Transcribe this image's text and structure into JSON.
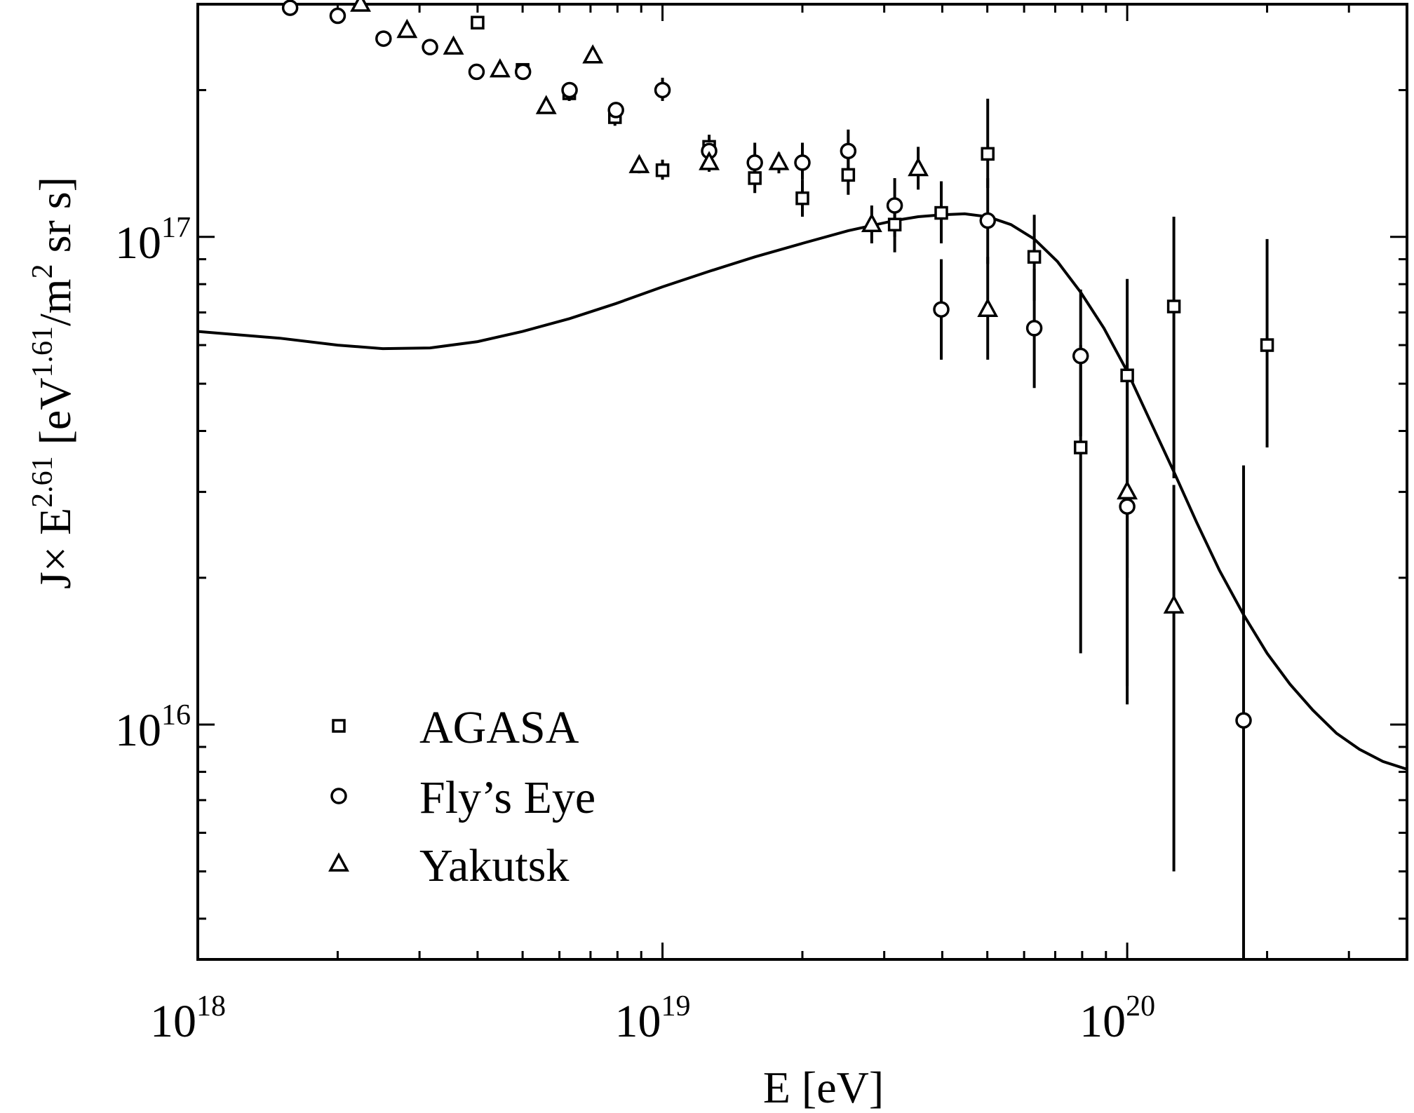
{
  "chart_data": {
    "type": "scatter",
    "x_scale": "log",
    "y_scale": "log",
    "xlim": [
      1e+18,
      4e+20
    ],
    "ylim": [
      3300000000000000.0,
      3e+17
    ],
    "xlabel": "E  [eV]",
    "ylabel": {
      "prefix": "J",
      "times": "×",
      "e": " E",
      "exp1": "2.61",
      "unit_open": "  [eV",
      "exp2": "1.61",
      "unit_mid": "/m",
      "exp3": "2",
      "unit_close": " sr s]"
    },
    "x_ticks": [
      {
        "base": "10",
        "exp": "18",
        "value": 1e+18
      },
      {
        "base": "10",
        "exp": "19",
        "value": 1e+19
      },
      {
        "base": "10",
        "exp": "20",
        "value": 1e+20
      }
    ],
    "y_ticks": [
      {
        "base": "10",
        "exp": "16",
        "value": 1e+16
      },
      {
        "base": "10",
        "exp": "17",
        "value": 1e+17
      }
    ],
    "grid": false,
    "legend_position": "bottom-left",
    "series": [
      {
        "name": "AGASA",
        "marker": "square",
        "points": [
          {
            "x": 4e+18,
            "y": 2.75e+17,
            "lo": 2.68e+17,
            "hi": 2.82e+17
          },
          {
            "x": 5e+18,
            "y": 2.2e+17,
            "lo": 2.14e+17,
            "hi": 2.26e+17
          },
          {
            "x": 6.3e+18,
            "y": 1.97e+17,
            "lo": 1.9e+17,
            "hi": 2.05e+17
          },
          {
            "x": 7.9e+18,
            "y": 1.76e+17,
            "lo": 1.69e+17,
            "hi": 1.83e+17
          },
          {
            "x": 1e+19,
            "y": 1.37e+17,
            "lo": 1.31e+17,
            "hi": 1.44e+17
          },
          {
            "x": 1.26e+19,
            "y": 1.53e+17,
            "lo": 1.45e+17,
            "hi": 1.62e+17
          },
          {
            "x": 1.58e+19,
            "y": 1.32e+17,
            "lo": 1.23e+17,
            "hi": 1.42e+17
          },
          {
            "x": 2e+19,
            "y": 1.2e+17,
            "lo": 1.1e+17,
            "hi": 1.31e+17
          },
          {
            "x": 2.51e+19,
            "y": 1.34e+17,
            "lo": 1.22e+17,
            "hi": 1.48e+17
          },
          {
            "x": 3.16e+19,
            "y": 1.06e+17,
            "lo": 9.3e+16,
            "hi": 1.2e+17
          },
          {
            "x": 3.98e+19,
            "y": 1.12e+17,
            "lo": 9.7e+16,
            "hi": 1.3e+17
          },
          {
            "x": 5.01e+19,
            "y": 1.48e+17,
            "lo": 1.26e+17,
            "hi": 1.92e+17
          },
          {
            "x": 6.31e+19,
            "y": 9.1e+16,
            "lo": 7.4e+16,
            "hi": 1.11e+17
          },
          {
            "x": 7.94e+19,
            "y": 3.7e+16,
            "lo": 1.4e+16,
            "hi": 6e+16
          },
          {
            "x": 1e+20,
            "y": 5.2e+16,
            "lo": 2e+16,
            "hi": 8.2e+16
          },
          {
            "x": 1.26e+20,
            "y": 7.2e+16,
            "lo": 3.2e+16,
            "hi": 1.1e+17
          },
          {
            "x": 2e+20,
            "y": 6e+16,
            "lo": 3.7e+16,
            "hi": 9.9e+16
          }
        ]
      },
      {
        "name": "Fly’s Eye",
        "marker": "circle",
        "points": [
          {
            "x": 1.58e+18,
            "y": 2.95e+17,
            "lo": 2.88e+17,
            "hi": 3.02e+17
          },
          {
            "x": 2e+18,
            "y": 2.84e+17,
            "lo": 2.77e+17,
            "hi": 2.91e+17
          },
          {
            "x": 2.51e+18,
            "y": 2.55e+17,
            "lo": 2.48e+17,
            "hi": 2.62e+17
          },
          {
            "x": 3.16e+18,
            "y": 2.45e+17,
            "lo": 2.38e+17,
            "hi": 2.52e+17
          },
          {
            "x": 3.98e+18,
            "y": 2.18e+17,
            "lo": 2.12e+17,
            "hi": 2.24e+17
          },
          {
            "x": 5.01e+18,
            "y": 2.18e+17,
            "lo": 2.12e+17,
            "hi": 2.24e+17
          },
          {
            "x": 6.31e+18,
            "y": 2e+17,
            "lo": 1.93e+17,
            "hi": 2.07e+17
          },
          {
            "x": 7.94e+18,
            "y": 1.82e+17,
            "lo": 1.76e+17,
            "hi": 1.88e+17
          },
          {
            "x": 1e+19,
            "y": 2e+17,
            "lo": 1.9e+17,
            "hi": 2.12e+17
          },
          {
            "x": 1.26e+19,
            "y": 1.5e+17,
            "lo": 1.42e+17,
            "hi": 1.58e+17
          },
          {
            "x": 1.58e+19,
            "y": 1.42e+17,
            "lo": 1.33e+17,
            "hi": 1.56e+17
          },
          {
            "x": 2e+19,
            "y": 1.42e+17,
            "lo": 1.31e+17,
            "hi": 1.56e+17
          },
          {
            "x": 2.51e+19,
            "y": 1.5e+17,
            "lo": 1.37e+17,
            "hi": 1.66e+17
          },
          {
            "x": 3.16e+19,
            "y": 1.16e+17,
            "lo": 1e+17,
            "hi": 1.32e+17
          },
          {
            "x": 3.98e+19,
            "y": 7.1e+16,
            "lo": 5.6e+16,
            "hi": 9e+16
          },
          {
            "x": 5.01e+19,
            "y": 1.08e+17,
            "lo": 8.8e+16,
            "hi": 1.32e+17
          },
          {
            "x": 6.31e+19,
            "y": 6.5e+16,
            "lo": 4.9e+16,
            "hi": 8.6e+16
          },
          {
            "x": 7.94e+19,
            "y": 5.7e+16,
            "lo": 3.9e+16,
            "hi": 7.8e+16
          },
          {
            "x": 1e+20,
            "y": 2.8e+16,
            "lo": 1.1e+16,
            "hi": 5.2e+16
          },
          {
            "x": 1.78e+20,
            "y": 1.02e+16,
            "lo": 3300000000000000.0,
            "hi": 3.4e+16
          }
        ]
      },
      {
        "name": "Yakutsk",
        "marker": "triangle",
        "points": [
          {
            "x": 2.24e+18,
            "y": 3e+17,
            "lo": 2.93e+17,
            "hi": 3.07e+17
          },
          {
            "x": 2.82e+18,
            "y": 2.65e+17,
            "lo": 2.58e+17,
            "hi": 2.72e+17
          },
          {
            "x": 3.55e+18,
            "y": 2.45e+17,
            "lo": 2.38e+17,
            "hi": 2.52e+17
          },
          {
            "x": 4.47e+18,
            "y": 2.2e+17,
            "lo": 2.14e+17,
            "hi": 2.26e+17
          },
          {
            "x": 5.62e+18,
            "y": 1.85e+17,
            "lo": 1.79e+17,
            "hi": 1.91e+17
          },
          {
            "x": 7.08e+18,
            "y": 2.35e+17,
            "lo": 2.28e+17,
            "hi": 2.42e+17
          },
          {
            "x": 8.91e+18,
            "y": 1.4e+17,
            "lo": 1.35e+17,
            "hi": 1.45e+17
          },
          {
            "x": 1.26e+19,
            "y": 1.42e+17,
            "lo": 1.36e+17,
            "hi": 1.48e+17
          },
          {
            "x": 1.78e+19,
            "y": 1.42e+17,
            "lo": 1.35e+17,
            "hi": 1.49e+17
          },
          {
            "x": 2.82e+19,
            "y": 1.06e+17,
            "lo": 9.7e+16,
            "hi": 1.16e+17
          },
          {
            "x": 3.55e+19,
            "y": 1.38e+17,
            "lo": 1.25e+17,
            "hi": 1.53e+17
          },
          {
            "x": 5.01e+19,
            "y": 7.1e+16,
            "lo": 5.6e+16,
            "hi": 9.1e+16
          },
          {
            "x": 1e+20,
            "y": 3e+16,
            "lo": 1.2e+16,
            "hi": 5.5e+16
          },
          {
            "x": 1.26e+20,
            "y": 1.75e+16,
            "lo": 5000000000000000.0,
            "hi": 3.1e+16
          }
        ]
      }
    ],
    "curve": {
      "points": [
        [
          1e+18,
          6.4e+16
        ],
        [
          1.5e+18,
          6.2e+16
        ],
        [
          2e+18,
          6e+16
        ],
        [
          2.5e+18,
          5.9e+16
        ],
        [
          3.16e+18,
          5.92e+16
        ],
        [
          4e+18,
          6.1e+16
        ],
        [
          5e+18,
          6.4e+16
        ],
        [
          6.31e+18,
          6.8e+16
        ],
        [
          7.94e+18,
          7.3e+16
        ],
        [
          1e+19,
          7.9e+16
        ],
        [
          1.26e+19,
          8.5e+16
        ],
        [
          1.58e+19,
          9.1e+16
        ],
        [
          2e+19,
          9.7e+16
        ],
        [
          2.51e+19,
          1.03e+17
        ],
        [
          3.16e+19,
          1.08e+17
        ],
        [
          3.55e+19,
          1.1e+17
        ],
        [
          4e+19,
          1.11e+17
        ],
        [
          4.47e+19,
          1.115e+17
        ],
        [
          5.01e+19,
          1.1e+17
        ],
        [
          5.62e+19,
          1.06e+17
        ],
        [
          6.31e+19,
          9.9e+16
        ],
        [
          7.08e+19,
          8.9e+16
        ],
        [
          7.94e+19,
          7.7e+16
        ],
        [
          8.91e+19,
          6.5e+16
        ],
        [
          1e+20,
          5.3e+16
        ],
        [
          1.12e+20,
          4.2e+16
        ],
        [
          1.26e+20,
          3.3e+16
        ],
        [
          1.41e+20,
          2.6e+16
        ],
        [
          1.58e+20,
          2.07e+16
        ],
        [
          1.78e+20,
          1.68e+16
        ],
        [
          2e+20,
          1.4e+16
        ],
        [
          2.24e+20,
          1.21e+16
        ],
        [
          2.51e+20,
          1.07e+16
        ],
        [
          2.82e+20,
          9600000000000000.0
        ],
        [
          3.16e+20,
          8900000000000000.0
        ],
        [
          3.55e+20,
          8400000000000000.0
        ],
        [
          4e+20,
          8100000000000000.0
        ]
      ]
    }
  }
}
